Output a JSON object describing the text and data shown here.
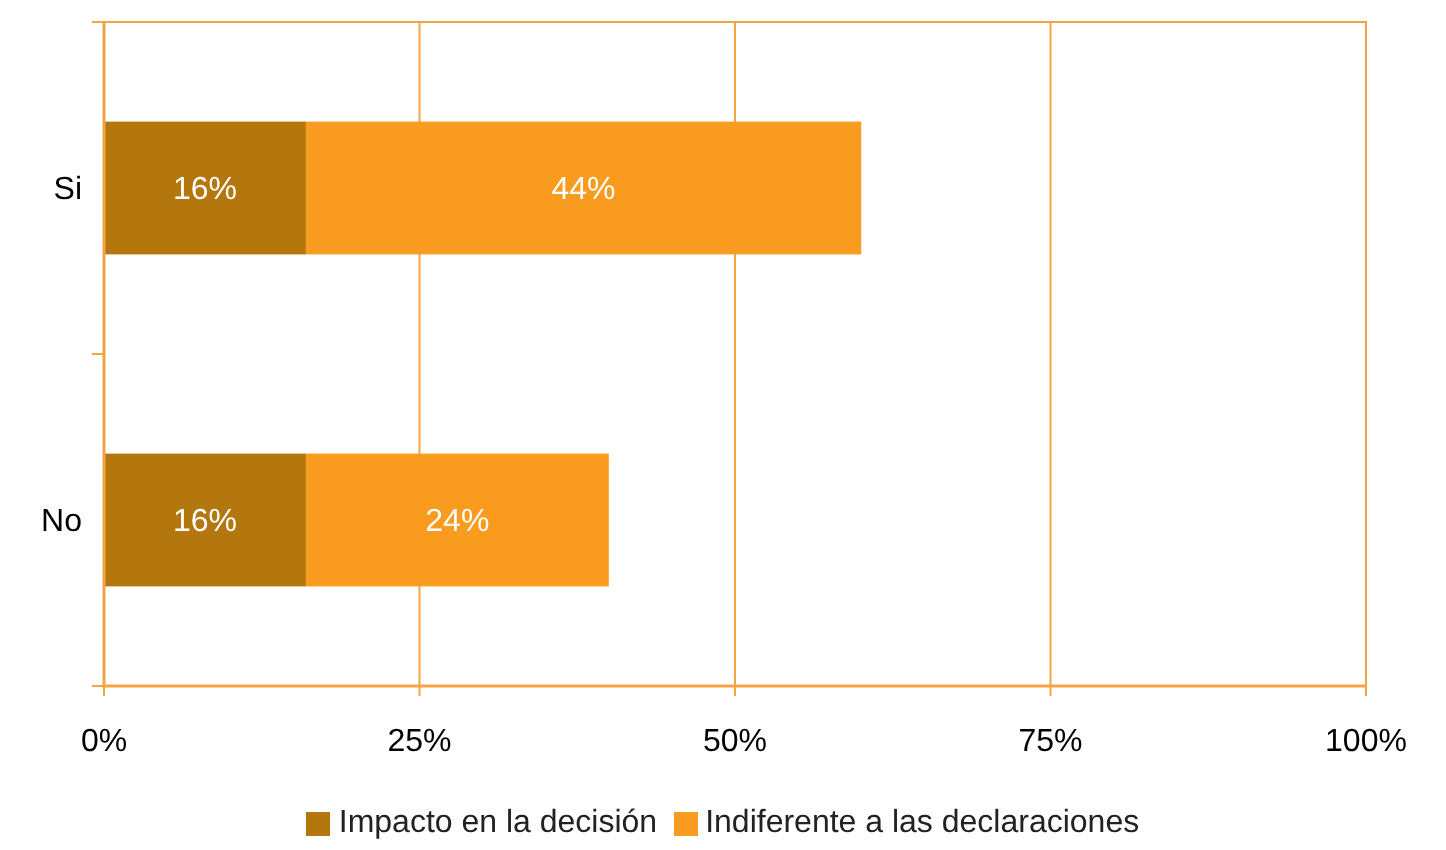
{
  "chart_data": {
    "type": "bar",
    "orientation": "horizontal",
    "stacked": true,
    "categories": [
      "Si",
      "No"
    ],
    "series": [
      {
        "name": "Impacto en la decisión",
        "color": "#b4770e",
        "values": [
          16,
          16
        ],
        "value_labels": [
          "16%",
          "16%"
        ]
      },
      {
        "name": "Indiferente a las declaraciones",
        "color": "#f99b1e",
        "values": [
          44,
          24
        ],
        "value_labels": [
          "44%",
          "24%"
        ]
      }
    ],
    "xlim": [
      0,
      100
    ],
    "xticks": [
      {
        "value": 0,
        "label": "0%"
      },
      {
        "value": 25,
        "label": "25%"
      },
      {
        "value": 50,
        "label": "50%"
      },
      {
        "value": 75,
        "label": "75%"
      },
      {
        "value": 100,
        "label": "100%"
      }
    ],
    "grid": "x",
    "legend": "bottom"
  }
}
